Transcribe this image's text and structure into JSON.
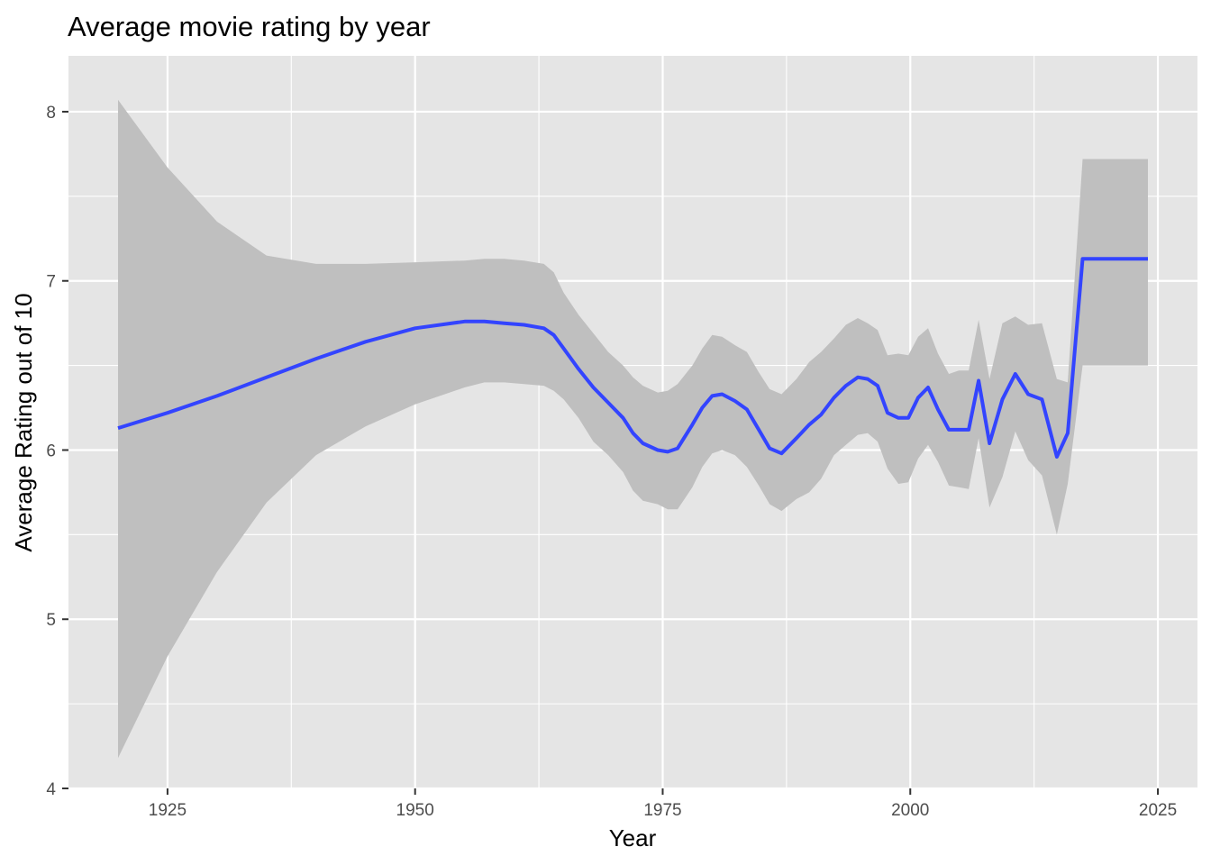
{
  "chart_data": {
    "type": "line",
    "title": "Average movie rating by year",
    "xlabel": "Year",
    "ylabel": "Average Rating out of 10",
    "xlim": [
      1915,
      2029
    ],
    "ylim": [
      4,
      8.33
    ],
    "x_ticks": [
      1925,
      1950,
      1975,
      2000,
      2025
    ],
    "y_ticks": [
      4,
      5,
      6,
      7,
      8
    ],
    "grid": true,
    "legend": "none",
    "colors": {
      "panel": "#e5e5e5",
      "grid": "#ffffff",
      "line": "#3344ff",
      "ribbon": "#bfbfbf",
      "tick_label": "#4d4d4d",
      "tick_mark": "#333333"
    },
    "series": [
      {
        "x": [
          1920,
          1925,
          1930,
          1935,
          1940,
          1945,
          1950,
          1955,
          1957,
          1959,
          1961,
          1963,
          1964,
          1965,
          1966.5,
          1968,
          1969.5,
          1971,
          1972,
          1973,
          1974.5,
          1975.5,
          1976.5,
          1978,
          1979,
          1980,
          1981,
          1982.3,
          1983.5,
          1984.7,
          1985.8,
          1987,
          1988.5,
          1989.8,
          1991,
          1992.3,
          1993.5,
          1994.7,
          1995.7,
          1996.7,
          1997.7,
          1998.8,
          1999.8,
          2000.8,
          2001.8,
          2002.8,
          2003.9,
          2004.9,
          2005.9,
          2006.9,
          2008,
          2009.3,
          2010.6,
          2011.9,
          2013.3,
          2014.8,
          2015.9,
          2017.4,
          2018.6,
          2019.9,
          2021.3,
          2022.6,
          2024
        ],
        "y": [
          6.13,
          6.22,
          6.32,
          6.43,
          6.54,
          6.64,
          6.72,
          6.76,
          6.76,
          6.75,
          6.74,
          6.72,
          6.68,
          6.6,
          6.48,
          6.37,
          6.28,
          6.19,
          6.1,
          6.04,
          6.0,
          5.99,
          6.01,
          6.15,
          6.25,
          6.32,
          6.33,
          6.29,
          6.24,
          6.12,
          6.01,
          5.98,
          6.07,
          6.15,
          6.21,
          6.31,
          6.38,
          6.43,
          6.42,
          6.38,
          6.22,
          6.19,
          6.19,
          6.31,
          6.37,
          6.24,
          6.12,
          6.12,
          6.12,
          6.41,
          6.04,
          6.3,
          6.45,
          6.33,
          6.3,
          5.96,
          6.1,
          7.13,
          7.13,
          7.13,
          7.13,
          7.13,
          7.13
        ],
        "ci_upper": [
          8.07,
          7.67,
          7.35,
          7.15,
          7.1,
          7.1,
          7.11,
          7.12,
          7.13,
          7.13,
          7.12,
          7.1,
          7.05,
          6.93,
          6.8,
          6.69,
          6.58,
          6.5,
          6.43,
          6.38,
          6.34,
          6.35,
          6.39,
          6.5,
          6.6,
          6.68,
          6.67,
          6.62,
          6.58,
          6.46,
          6.36,
          6.33,
          6.42,
          6.52,
          6.58,
          6.66,
          6.74,
          6.78,
          6.75,
          6.71,
          6.56,
          6.57,
          6.56,
          6.67,
          6.72,
          6.57,
          6.45,
          6.47,
          6.47,
          6.77,
          6.42,
          6.75,
          6.79,
          6.74,
          6.75,
          6.42,
          6.4,
          7.72,
          7.72,
          7.72,
          7.72,
          7.72,
          7.72
        ],
        "ci_lower": [
          4.18,
          4.78,
          5.28,
          5.69,
          5.97,
          6.14,
          6.27,
          6.37,
          6.4,
          6.4,
          6.39,
          6.38,
          6.35,
          6.3,
          6.19,
          6.05,
          5.97,
          5.87,
          5.76,
          5.7,
          5.68,
          5.65,
          5.65,
          5.78,
          5.9,
          5.98,
          6.0,
          5.97,
          5.9,
          5.79,
          5.68,
          5.64,
          5.71,
          5.75,
          5.83,
          5.97,
          6.03,
          6.09,
          6.1,
          6.05,
          5.89,
          5.8,
          5.81,
          5.95,
          6.03,
          5.93,
          5.79,
          5.78,
          5.77,
          6.07,
          5.66,
          5.84,
          6.11,
          5.94,
          5.85,
          5.5,
          5.8,
          6.5,
          6.5,
          6.5,
          6.5,
          6.5,
          6.5
        ]
      }
    ]
  }
}
